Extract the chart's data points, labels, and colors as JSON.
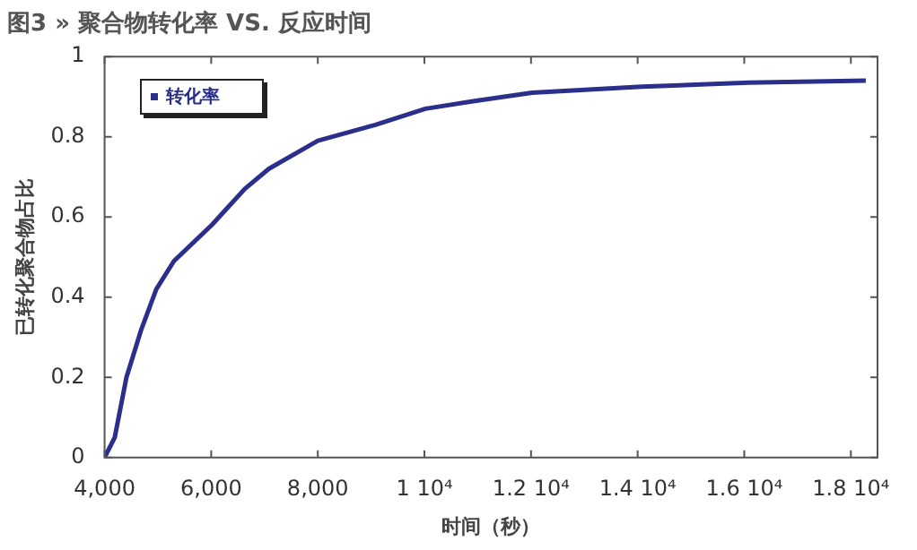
{
  "chart_data": {
    "type": "line",
    "title": "图3 » 聚合物转化率 VS. 反应时间",
    "xlabel": "时间（秒）",
    "ylabel": "已转化聚合物占比",
    "series": [
      {
        "name": "转化率",
        "color": "#2b2f8c",
        "x": [
          4000,
          4190,
          4410,
          4690,
          4970,
          5300,
          6010,
          6630,
          7080,
          8000,
          9080,
          10020,
          10970,
          12020,
          14080,
          16080,
          18280
        ],
        "values": [
          0,
          0.05,
          0.2,
          0.32,
          0.42,
          0.49,
          0.58,
          0.67,
          0.72,
          0.79,
          0.83,
          0.87,
          0.89,
          0.91,
          0.925,
          0.935,
          0.94
        ]
      }
    ],
    "xlim": [
      4000,
      18500
    ],
    "xticks": [
      {
        "value": 4000,
        "label": "4,000"
      },
      {
        "value": 6000,
        "label": "6,000"
      },
      {
        "value": 8000,
        "label": "8,000"
      },
      {
        "value": 10000,
        "label": "1 10⁴"
      },
      {
        "value": 12000,
        "label": "1.2 10⁴"
      },
      {
        "value": 14000,
        "label": "1.4 10⁴"
      },
      {
        "value": 16000,
        "label": "1.6 10⁴"
      },
      {
        "value": 18000,
        "label": "1.8 10⁴"
      }
    ],
    "ylim": [
      0,
      1
    ],
    "yticks": [
      0,
      0.2,
      0.4,
      0.6,
      0.8,
      1
    ],
    "grid": false,
    "legend": "top left",
    "line_style": "solid"
  }
}
